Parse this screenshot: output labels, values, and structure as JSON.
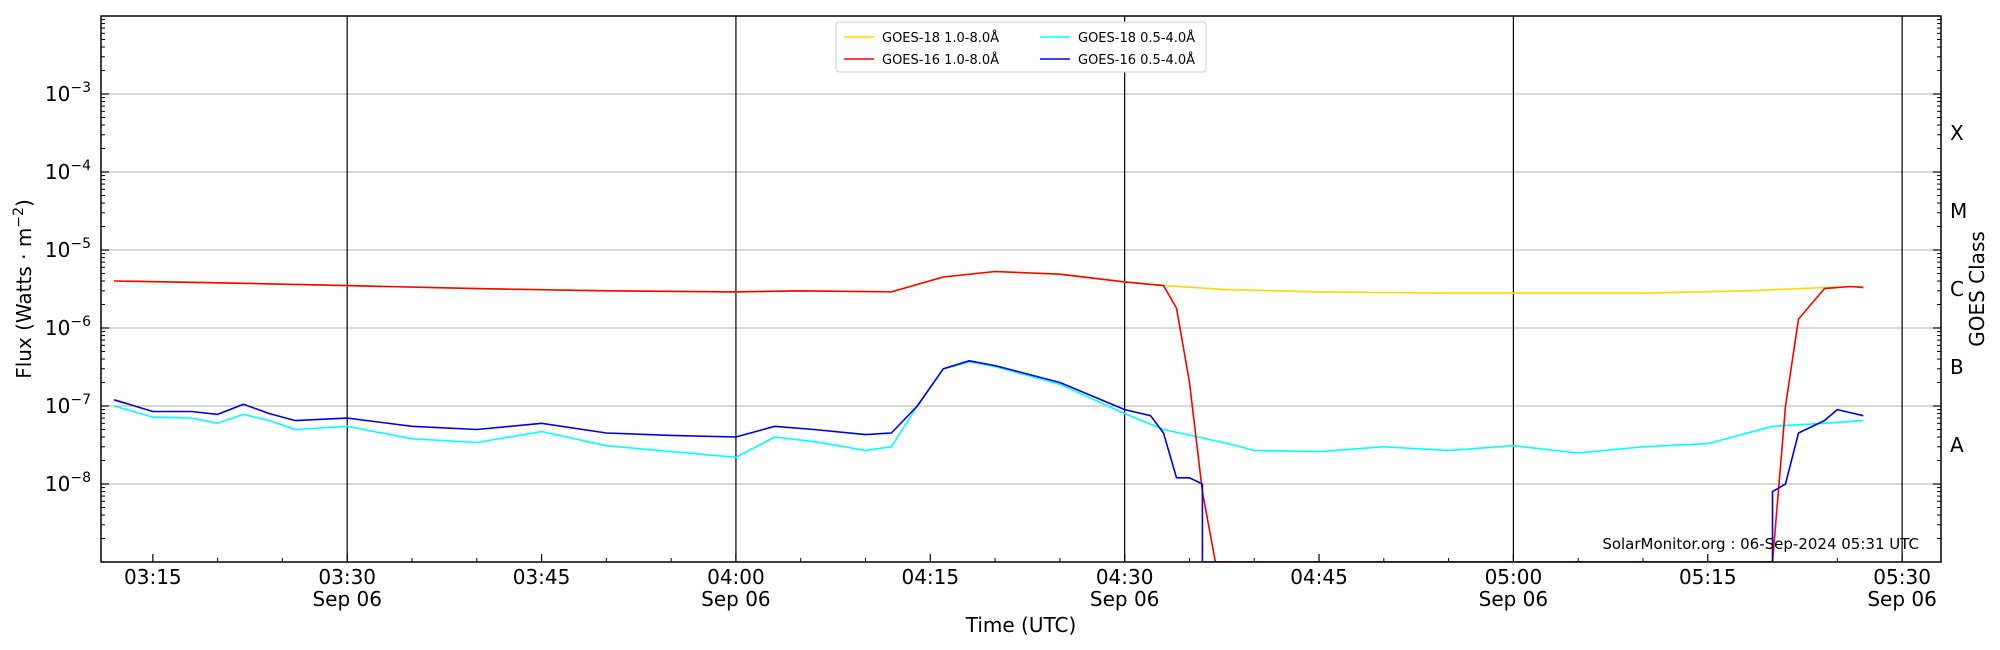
{
  "chart_data": {
    "type": "line",
    "title": "",
    "xlabel": "Time (UTC)",
    "ylabel_parts": {
      "main": "Flux (Watts · m",
      "exp": "−2",
      "close": ")"
    },
    "y2label": "GOES Class",
    "yscale": "log",
    "ylim": [
      1e-09,
      0.01
    ],
    "xlim": [
      "03:11",
      "05:33"
    ],
    "x_unit": "time of day (UTC), minutes rendered from HH:MM",
    "grid": "horizontal at decades",
    "legend_position": "top-center",
    "x_ticks": [
      {
        "time": "03:15",
        "label": "03:15",
        "date": ""
      },
      {
        "time": "03:30",
        "label": "03:30",
        "date": "Sep 06"
      },
      {
        "time": "03:45",
        "label": "03:45",
        "date": ""
      },
      {
        "time": "04:00",
        "label": "04:00",
        "date": "Sep 06"
      },
      {
        "time": "04:15",
        "label": "04:15",
        "date": ""
      },
      {
        "time": "04:30",
        "label": "04:30",
        "date": "Sep 06"
      },
      {
        "time": "04:45",
        "label": "04:45",
        "date": ""
      },
      {
        "time": "05:00",
        "label": "05:00",
        "date": "Sep 06"
      },
      {
        "time": "05:15",
        "label": "05:15",
        "date": ""
      },
      {
        "time": "05:30",
        "label": "05:30",
        "date": "Sep 06"
      }
    ],
    "vertical_lines": [
      "03:30",
      "04:00",
      "04:30",
      "05:00",
      "05:30"
    ],
    "y_ticks": [
      {
        "value": 1e-08,
        "base": "10",
        "exp": "−8"
      },
      {
        "value": 1e-07,
        "base": "10",
        "exp": "−7"
      },
      {
        "value": 1e-06,
        "base": "10",
        "exp": "−6"
      },
      {
        "value": 1e-05,
        "base": "10",
        "exp": "−5"
      },
      {
        "value": 0.0001,
        "base": "10",
        "exp": "−4"
      },
      {
        "value": 0.001,
        "base": "10",
        "exp": "−3"
      }
    ],
    "goes_classes": [
      {
        "label": "A",
        "value": 3.16e-08
      },
      {
        "label": "B",
        "value": 3.16e-07
      },
      {
        "label": "C",
        "value": 3.16e-06
      },
      {
        "label": "M",
        "value": 3.16e-05
      },
      {
        "label": "X",
        "value": 0.000316
      }
    ],
    "legend": [
      {
        "label": "GOES-18 1.0-8.0Å",
        "color": "#ffd700"
      },
      {
        "label": "GOES-18 0.5-4.0Å",
        "color": "#00ffff"
      },
      {
        "label": "GOES-16 1.0-8.0Å",
        "color": "#ff0000"
      },
      {
        "label": "GOES-16 0.5-4.0Å",
        "color": "#0000ee"
      }
    ],
    "series": [
      {
        "name": "GOES-18 1.0-8.0Å",
        "color": "#ffd700",
        "points": [
          [
            "03:12",
            4e-06
          ],
          [
            "03:20",
            3.8e-06
          ],
          [
            "03:30",
            3.5e-06
          ],
          [
            "03:40",
            3.2e-06
          ],
          [
            "03:50",
            3e-06
          ],
          [
            "04:00",
            2.9e-06
          ],
          [
            "04:05",
            3e-06
          ],
          [
            "04:12",
            2.9e-06
          ],
          [
            "04:16",
            4.5e-06
          ],
          [
            "04:20",
            5.3e-06
          ],
          [
            "04:25",
            4.9e-06
          ],
          [
            "04:30",
            3.9e-06
          ],
          [
            "04:33",
            3.5e-06
          ],
          [
            "04:38",
            3.1e-06
          ],
          [
            "04:45",
            2.9e-06
          ],
          [
            "04:55",
            2.8e-06
          ],
          [
            "05:00",
            2.8e-06
          ],
          [
            "05:10",
            2.8e-06
          ],
          [
            "05:18",
            3e-06
          ],
          [
            "05:24",
            3.3e-06
          ],
          [
            "05:27",
            3.4e-06
          ]
        ]
      },
      {
        "name": "GOES-18 0.5-4.0Å",
        "color": "#00ffff",
        "points": [
          [
            "03:12",
            1e-07
          ],
          [
            "03:15",
            7.2e-08
          ],
          [
            "03:18",
            7e-08
          ],
          [
            "03:20",
            6e-08
          ],
          [
            "03:22",
            7.8e-08
          ],
          [
            "03:24",
            6.5e-08
          ],
          [
            "03:26",
            5e-08
          ],
          [
            "03:30",
            5.5e-08
          ],
          [
            "03:35",
            3.8e-08
          ],
          [
            "03:40",
            3.4e-08
          ],
          [
            "03:45",
            4.7e-08
          ],
          [
            "03:50",
            3.1e-08
          ],
          [
            "03:55",
            2.6e-08
          ],
          [
            "04:00",
            2.2e-08
          ],
          [
            "04:03",
            4e-08
          ],
          [
            "04:06",
            3.5e-08
          ],
          [
            "04:10",
            2.7e-08
          ],
          [
            "04:12",
            3e-08
          ],
          [
            "04:14",
            1e-07
          ],
          [
            "04:16",
            3e-07
          ],
          [
            "04:18",
            3.7e-07
          ],
          [
            "04:20",
            3.2e-07
          ],
          [
            "04:25",
            1.9e-07
          ],
          [
            "04:30",
            8e-08
          ],
          [
            "04:33",
            5e-08
          ],
          [
            "04:38",
            3.3e-08
          ],
          [
            "04:40",
            2.7e-08
          ],
          [
            "04:45",
            2.6e-08
          ],
          [
            "04:50",
            3e-08
          ],
          [
            "04:55",
            2.7e-08
          ],
          [
            "05:00",
            3.1e-08
          ],
          [
            "05:05",
            2.5e-08
          ],
          [
            "05:10",
            3e-08
          ],
          [
            "05:15",
            3.3e-08
          ],
          [
            "05:20",
            5.5e-08
          ],
          [
            "05:24",
            6e-08
          ],
          [
            "05:27",
            6.5e-08
          ]
        ]
      },
      {
        "name": "GOES-16 1.0-8.0Å",
        "color": "#ff0000",
        "points": [
          [
            "03:12",
            4e-06
          ],
          [
            "03:20",
            3.8e-06
          ],
          [
            "03:30",
            3.5e-06
          ],
          [
            "03:40",
            3.2e-06
          ],
          [
            "03:50",
            3e-06
          ],
          [
            "04:00",
            2.9e-06
          ],
          [
            "04:05",
            3e-06
          ],
          [
            "04:12",
            2.9e-06
          ],
          [
            "04:16",
            4.5e-06
          ],
          [
            "04:20",
            5.3e-06
          ],
          [
            "04:25",
            4.9e-06
          ],
          [
            "04:30",
            3.9e-06
          ],
          [
            "04:33",
            3.5e-06
          ],
          [
            "04:34",
            1.8e-06
          ],
          [
            "04:35",
            2e-07
          ],
          [
            "04:36",
            8e-09
          ],
          [
            "04:37",
            1e-09
          ],
          [
            "05:20",
            1e-09
          ],
          [
            "05:21",
            1e-07
          ],
          [
            "05:22",
            1.3e-06
          ],
          [
            "05:24",
            3.2e-06
          ],
          [
            "05:26",
            3.4e-06
          ],
          [
            "05:27",
            3.3e-06
          ]
        ]
      },
      {
        "name": "GOES-16 0.5-4.0Å",
        "color": "#0000ee",
        "points": [
          [
            "03:12",
            1.2e-07
          ],
          [
            "03:15",
            8.5e-08
          ],
          [
            "03:18",
            8.5e-08
          ],
          [
            "03:20",
            7.8e-08
          ],
          [
            "03:22",
            1.05e-07
          ],
          [
            "03:24",
            8e-08
          ],
          [
            "03:26",
            6.5e-08
          ],
          [
            "03:30",
            7e-08
          ],
          [
            "03:35",
            5.5e-08
          ],
          [
            "03:40",
            5e-08
          ],
          [
            "03:45",
            6e-08
          ],
          [
            "03:50",
            4.5e-08
          ],
          [
            "03:55",
            4.2e-08
          ],
          [
            "04:00",
            4e-08
          ],
          [
            "04:03",
            5.5e-08
          ],
          [
            "04:06",
            5e-08
          ],
          [
            "04:10",
            4.3e-08
          ],
          [
            "04:12",
            4.5e-08
          ],
          [
            "04:14",
            1e-07
          ],
          [
            "04:16",
            3e-07
          ],
          [
            "04:18",
            3.8e-07
          ],
          [
            "04:20",
            3.3e-07
          ],
          [
            "04:25",
            2e-07
          ],
          [
            "04:30",
            9e-08
          ],
          [
            "04:32",
            7.5e-08
          ],
          [
            "04:33",
            4.5e-08
          ],
          [
            "04:34",
            1.2e-08
          ],
          [
            "04:35",
            1.2e-08
          ],
          [
            "04:36",
            1e-08
          ],
          [
            "04:36",
            1e-09
          ],
          [
            "05:20",
            1e-09
          ],
          [
            "05:20",
            8e-09
          ],
          [
            "05:21",
            1e-08
          ],
          [
            "05:22",
            4.5e-08
          ],
          [
            "05:24",
            6.5e-08
          ],
          [
            "05:25",
            9e-08
          ],
          [
            "05:27",
            7.5e-08
          ]
        ]
      }
    ]
  },
  "watermark": "SolarMonitor.org : 06-Sep-2024 05:31 UTC"
}
